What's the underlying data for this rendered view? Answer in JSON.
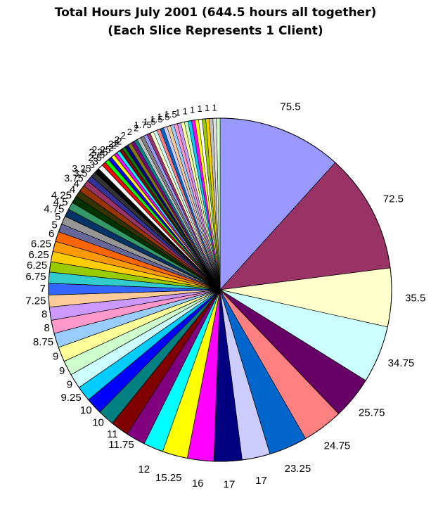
{
  "chart_data": {
    "type": "pie",
    "title": "Total Hours July 2001 (644.5 hours all together)",
    "subtitle": "(Each Slice Represents 1 Client)",
    "total": 644.5,
    "labeled_slices": [
      {
        "value": 75.5,
        "label": "75.5",
        "color": "#9999ff"
      },
      {
        "value": 72.5,
        "label": "72.5",
        "color": "#993366"
      },
      {
        "value": 35.5,
        "label": "35.5",
        "color": "#ffffcc"
      },
      {
        "value": 34.75,
        "label": "34.75",
        "color": "#ccffff"
      },
      {
        "value": 25.75,
        "label": "25.75",
        "color": "#660066"
      },
      {
        "value": 24.75,
        "label": "24.75",
        "color": "#ff8080"
      },
      {
        "value": 23.25,
        "label": "23.25",
        "color": "#0066cc"
      },
      {
        "value": 17,
        "label": "17",
        "color": "#ccccff"
      },
      {
        "value": 17,
        "label": "17",
        "color": "#000080"
      },
      {
        "value": 16,
        "label": "16",
        "color": "#ff00ff"
      },
      {
        "value": 15.25,
        "label": "15.25",
        "color": "#ffff00"
      },
      {
        "value": 12,
        "label": "12",
        "color": "#00ffff"
      },
      {
        "value": 11.75,
        "label": "11.75",
        "color": "#800080"
      },
      {
        "value": 11,
        "label": "11",
        "color": "#800000"
      },
      {
        "value": 10,
        "label": "10",
        "color": "#008080"
      },
      {
        "value": 10,
        "label": "10",
        "color": "#0000ff"
      },
      {
        "value": 9.25,
        "label": "9.25",
        "color": "#00ccff"
      },
      {
        "value": 9,
        "label": "9",
        "color": "#ccffff"
      },
      {
        "value": 9,
        "label": "9",
        "color": "#ccffcc"
      },
      {
        "value": 9,
        "label": "9",
        "color": "#ffff99"
      },
      {
        "value": 8.75,
        "label": "8.75",
        "color": "#99ccff"
      },
      {
        "value": 8,
        "label": "8",
        "color": "#ff99cc"
      },
      {
        "value": 8,
        "label": "8",
        "color": "#cc99ff"
      },
      {
        "value": 7.25,
        "label": "7.25",
        "color": "#ffcc99"
      },
      {
        "value": 7,
        "label": "7",
        "color": "#3366ff"
      },
      {
        "value": 6.75,
        "label": "6.75",
        "color": "#33cccc"
      },
      {
        "value": 6.25,
        "label": "6.25",
        "color": "#99cc00"
      },
      {
        "value": 6.25,
        "label": "6.25",
        "color": "#ffcc00"
      },
      {
        "value": 6.25,
        "label": "6.25",
        "color": "#ff9900"
      },
      {
        "value": 6,
        "label": "6",
        "color": "#ff6600"
      },
      {
        "value": 5,
        "label": "5",
        "color": "#666699"
      },
      {
        "value": 5,
        "label": "5",
        "color": "#969696"
      },
      {
        "value": 4.75,
        "label": "4.75",
        "color": "#003366"
      },
      {
        "value": 4.5,
        "label": "4.5",
        "color": "#339966"
      },
      {
        "value": 4.25,
        "label": "4.25",
        "color": "#003300"
      },
      {
        "value": 4,
        "label": "4",
        "color": "#333300"
      },
      {
        "value": 4,
        "label": "4",
        "color": "#993300"
      },
      {
        "value": 3.75,
        "label": "3.75",
        "color": "#993366"
      },
      {
        "value": 3.5,
        "label": "3.5",
        "color": "#333399"
      },
      {
        "value": 3.25,
        "label": "3.25",
        "color": "#333333"
      },
      {
        "value": 3,
        "label": "3",
        "color": "#000000"
      },
      {
        "value": 3,
        "label": "3",
        "color": "#ffffff"
      },
      {
        "value": 2.5,
        "label": "2.5",
        "color": "#ff0000"
      },
      {
        "value": 2.5,
        "label": "2.5",
        "color": "#00ff00"
      },
      {
        "value": 2.25,
        "label": "2.25",
        "color": "#0000ff"
      },
      {
        "value": 2.25,
        "label": "2.25",
        "color": "#ffff00"
      },
      {
        "value": 2,
        "label": "2",
        "color": "#ff00ff"
      },
      {
        "value": 2,
        "label": "2",
        "color": "#00ffff"
      },
      {
        "value": 2,
        "label": "2",
        "color": "#800000"
      },
      {
        "value": 2,
        "label": "2",
        "color": "#008000"
      }
    ],
    "small_slice_colors": [
      "#000080",
      "#808000",
      "#800080",
      "#008080",
      "#c0c0c0",
      "#808080",
      "#9999ff",
      "#993366",
      "#ffffcc",
      "#ccffff",
      "#ff8080",
      "#0066cc",
      "#ccccff",
      "#ffcc99",
      "#99ccff",
      "#ff99cc",
      "#cc99ff",
      "#ffff99",
      "#ccffcc",
      "#00ccff",
      "#ff00ff",
      "#ffff00",
      "#ffffff",
      "#99cc00",
      "#ffcc00",
      "#c0c0c0",
      "#e0e0e0",
      "#ccffcc"
    ],
    "edge_labels": [
      "2",
      "2",
      "2",
      "2",
      "2",
      "1.75",
      "1.5",
      "1.5",
      "1.5",
      "1.5",
      "1",
      "1",
      "1",
      "1",
      "1",
      "1"
    ],
    "legend": "none"
  }
}
